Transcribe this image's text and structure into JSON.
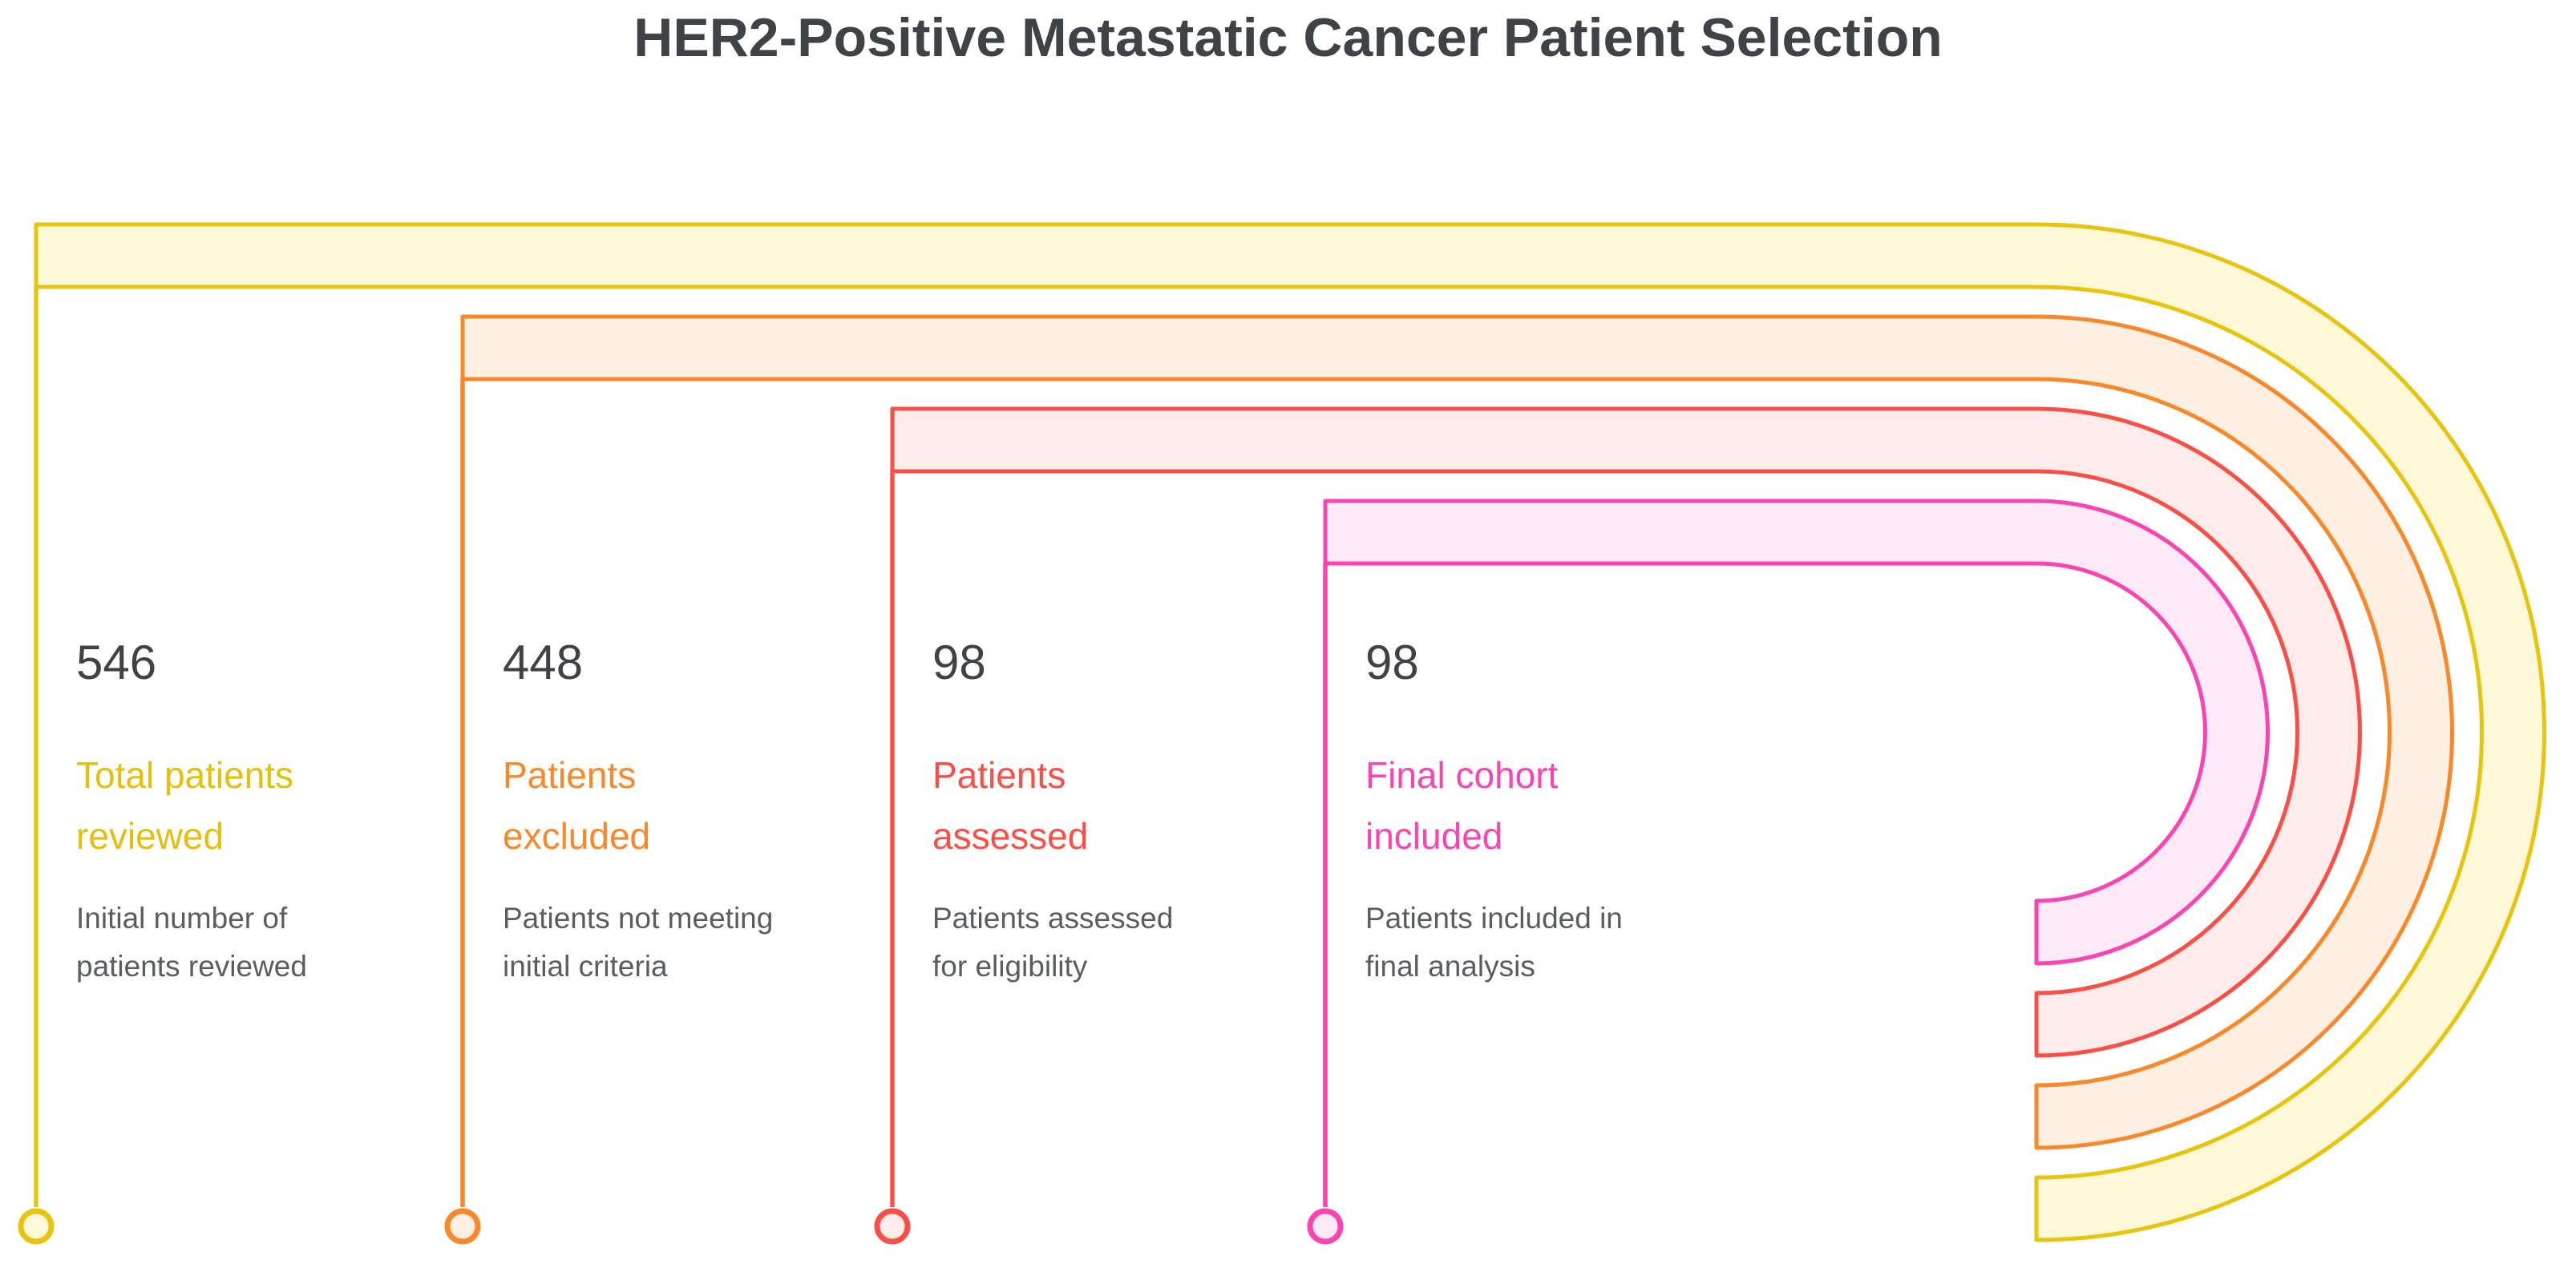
{
  "title": "HER2-Positive Metastatic Cancer Patient Selection",
  "colors": {
    "background": "#FFFFFF",
    "title_text": "#3F4246",
    "number_text": "#3F4246",
    "description_text": "#5A5D60"
  },
  "stages": [
    {
      "value": "546",
      "label": "Total patients\nreviewed",
      "description": "Initial number of\npatients reviewed",
      "stroke": "#E7C50F",
      "fill": "#FEF8D8",
      "text_color": "#E4C00C"
    },
    {
      "value": "448",
      "label": "Patients\nexcluded",
      "description": "Patients not meeting\ninitial criteria",
      "stroke": "#F8882A",
      "fill": "#FDF0E3",
      "text_color": "#F8882A"
    },
    {
      "value": "98",
      "label": "Patients\nassessed",
      "description": "Patients assessed\nfor eligibility",
      "stroke": "#FA4F46",
      "fill": "#FDECEA",
      "text_color": "#FA4F46"
    },
    {
      "value": "98",
      "label": "Final cohort\nincluded",
      "description": "Patients included in\nfinal analysis",
      "stroke": "#F944B1",
      "fill": "#FDEAF6",
      "text_color": "#F944B1"
    }
  ],
  "chart_data": {
    "type": "funnel",
    "title": "HER2-Positive Metastatic Cancer Patient Selection",
    "stages": [
      {
        "label": "Total patients reviewed",
        "value": 546,
        "description": "Initial number of patients reviewed",
        "color": "#E7C50F"
      },
      {
        "label": "Patients excluded",
        "value": 448,
        "description": "Patients not meeting initial criteria",
        "color": "#F8882A"
      },
      {
        "label": "Patients assessed",
        "value": 98,
        "description": "Patients assessed for eligibility",
        "color": "#FA4F46"
      },
      {
        "label": "Final cohort included",
        "value": 98,
        "description": "Patients included in final analysis",
        "color": "#F944B1"
      }
    ],
    "legend_position": "none",
    "grid": false
  }
}
